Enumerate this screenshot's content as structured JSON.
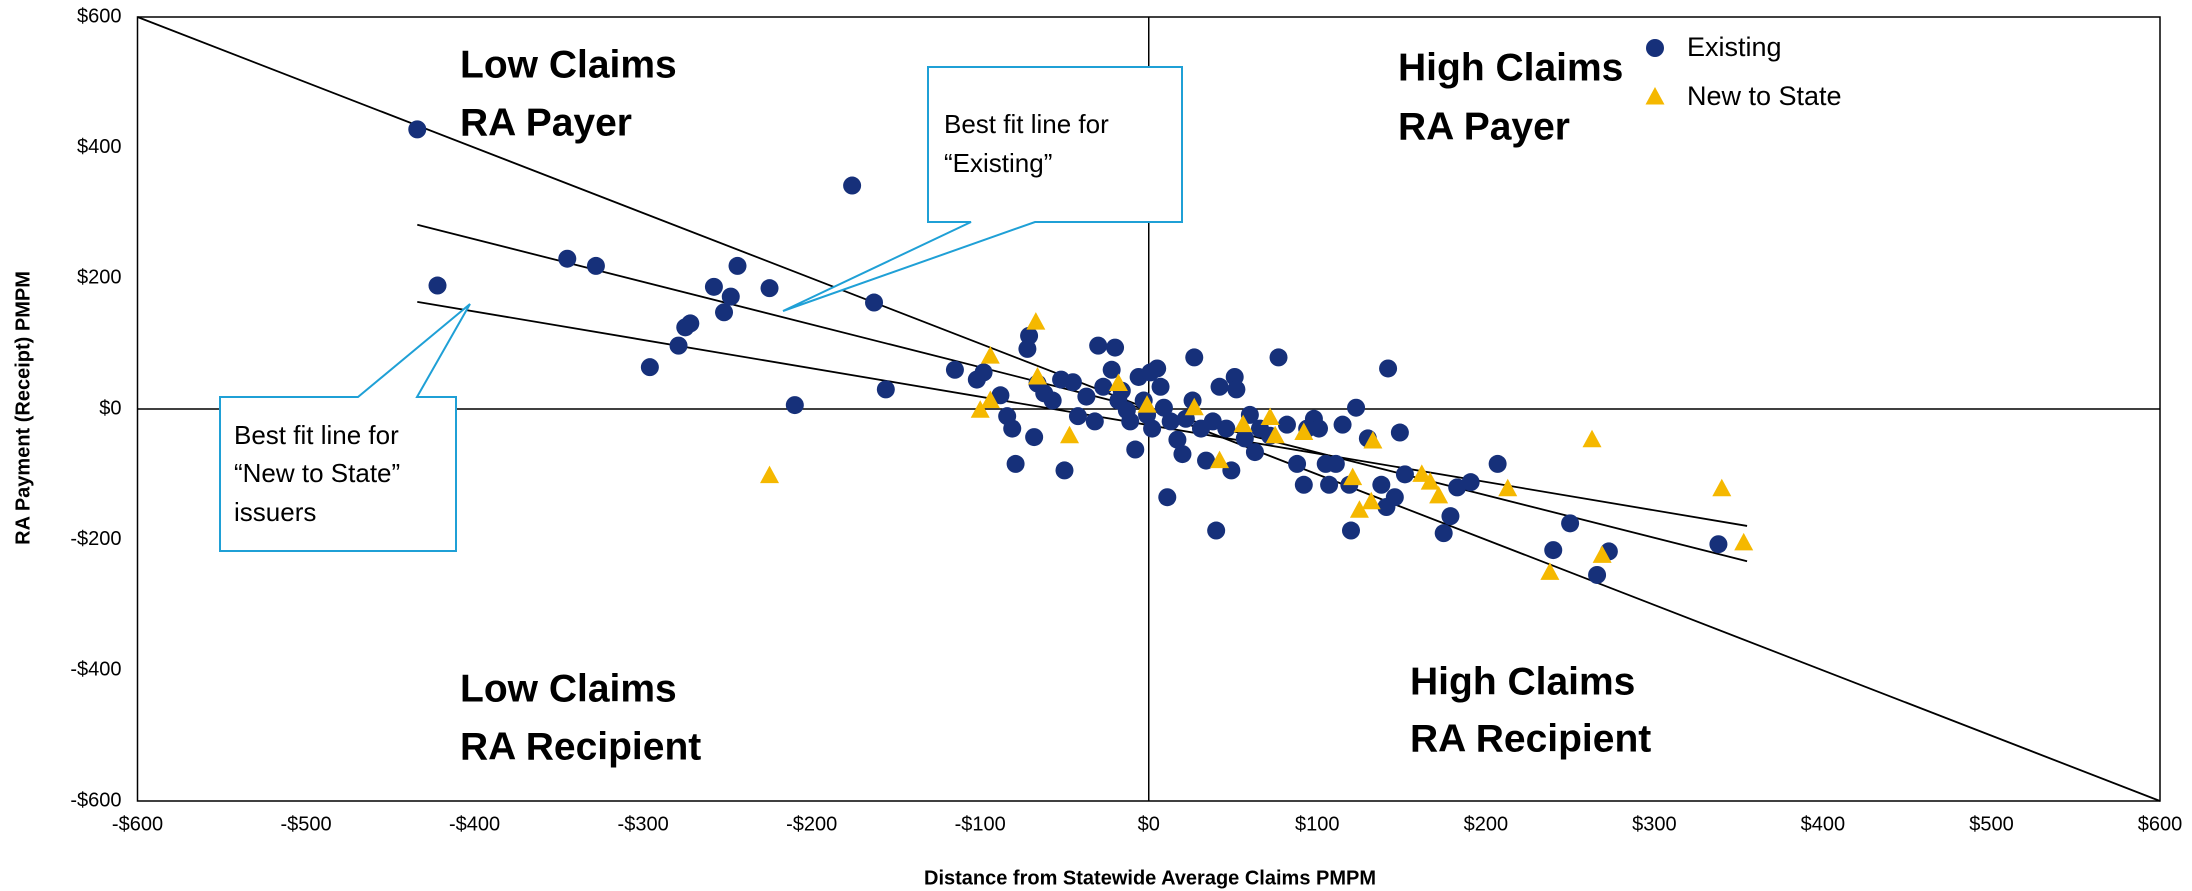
{
  "chart_data": {
    "type": "scatter",
    "xlabel": "Distance from Statewide Average Claims PMPM",
    "ylabel": "RA Payment (Receipt) PMPM",
    "xlim": [
      -600,
      600
    ],
    "ylim": [
      -600,
      600
    ],
    "xticks": [
      {
        "value": -600,
        "label": "-$600"
      },
      {
        "value": -500,
        "label": "-$500"
      },
      {
        "value": -400,
        "label": "-$400"
      },
      {
        "value": -300,
        "label": "-$300"
      },
      {
        "value": -200,
        "label": "-$200"
      },
      {
        "value": -100,
        "label": "-$100"
      },
      {
        "value": 0,
        "label": "$0"
      },
      {
        "value": 100,
        "label": "$100"
      },
      {
        "value": 200,
        "label": "$200"
      },
      {
        "value": 300,
        "label": "$300"
      },
      {
        "value": 400,
        "label": "$400"
      },
      {
        "value": 500,
        "label": "$500"
      },
      {
        "value": 600,
        "label": "$600"
      }
    ],
    "yticks": [
      {
        "value": 600,
        "label": "$600"
      },
      {
        "value": 400,
        "label": "$400"
      },
      {
        "value": 200,
        "label": "$200"
      },
      {
        "value": 0,
        "label": "$0"
      },
      {
        "value": -200,
        "label": "-$200"
      },
      {
        "value": -400,
        "label": "-$400"
      },
      {
        "value": -600,
        "label": "-$600"
      }
    ],
    "legend": "upper right",
    "series": [
      {
        "name": "Existing",
        "color": "#16307a",
        "marker": "circle",
        "x": [
          -434,
          -422,
          -345,
          -328,
          -296,
          -279,
          -275,
          -272,
          -258,
          -252,
          -248,
          -244,
          -225,
          -210,
          -176,
          -163,
          -156,
          -115,
          -102,
          -98,
          -88,
          -84,
          -81,
          -79,
          -71,
          -72,
          -68,
          -66,
          -62,
          -57,
          -52,
          -50,
          -45,
          -42,
          -37,
          -32,
          -30,
          -27,
          -22,
          -20,
          -18,
          -16,
          -13,
          -11,
          -8,
          -6,
          -3,
          -1,
          1,
          2,
          5,
          7,
          9,
          11,
          13,
          17,
          20,
          22,
          26,
          27,
          31,
          34,
          38,
          40,
          42,
          46,
          49,
          51,
          52,
          57,
          60,
          63,
          66,
          72,
          77,
          82,
          88,
          92,
          94,
          98,
          101,
          105,
          107,
          111,
          115,
          119,
          120,
          123,
          130,
          138,
          141,
          142,
          146,
          149,
          152,
          175,
          179,
          183,
          191,
          207,
          240,
          250,
          266,
          273,
          338
        ],
        "values": [
          428,
          189,
          230,
          219,
          64,
          97,
          125,
          131,
          187,
          148,
          172,
          219,
          185,
          6,
          342,
          163,
          30,
          60,
          45,
          56,
          21,
          -11,
          -30,
          -84,
          112,
          92,
          -43,
          39,
          24,
          13,
          45,
          -94,
          41,
          -11,
          19,
          -19,
          97,
          34,
          60,
          94,
          13,
          28,
          -2,
          -19,
          -62,
          49,
          13,
          -9,
          56,
          -30,
          62,
          34,
          2,
          -135,
          -19,
          -47,
          -69,
          -15,
          13,
          79,
          -30,
          -79,
          -19,
          -186,
          34,
          -30,
          -94,
          49,
          30,
          -45,
          -9,
          -66,
          -30,
          -41,
          79,
          -24,
          -84,
          -116,
          -30,
          -15,
          -30,
          -84,
          -116,
          -84,
          -24,
          -116,
          -186,
          2,
          -45,
          -116,
          -150,
          62,
          -135,
          -36,
          -100,
          -190,
          -164,
          -120,
          -112,
          -84,
          -216,
          -175,
          -254,
          -218,
          -207
        ]
      },
      {
        "name": "New to State",
        "color": "#f5b800",
        "marker": "triangle",
        "x": [
          -225,
          -100,
          -94,
          -94,
          -67,
          -66,
          -47,
          -18,
          -1,
          27,
          42,
          56,
          72,
          75,
          92,
          121,
          125,
          132,
          133,
          162,
          167,
          172,
          213,
          238,
          263,
          269,
          340,
          353
        ],
        "values": [
          -102,
          -2,
          81,
          13,
          133,
          49,
          -41,
          39,
          6,
          2,
          -79,
          -24,
          -13,
          -41,
          -36,
          -105,
          -155,
          -142,
          -49,
          -100,
          -112,
          -133,
          -122,
          -250,
          -47,
          -224,
          -122,
          -205
        ]
      }
    ],
    "lines": [
      {
        "color": "#000000",
        "x": [
          -600,
          600
        ],
        "values": [
          600,
          -600
        ]
      },
      {
        "color": "#000000",
        "x": [
          -434,
          355
        ],
        "values": [
          282,
          -233
        ]
      },
      {
        "color": "#000000",
        "x": [
          -434,
          355
        ],
        "values": [
          164,
          -179
        ]
      }
    ],
    "quadrant_labels": [
      [
        "Low Claims",
        "RA Payer"
      ],
      [
        "High Claims",
        "RA Payer"
      ],
      [
        "Low Claims",
        "RA Recipient"
      ],
      [
        "High Claims",
        "RA Recipient"
      ]
    ],
    "callouts": [
      [
        "Best fit line for",
        "“Existing”"
      ],
      [
        "Best fit line for",
        "“New to State”",
        "issuers"
      ]
    ]
  }
}
